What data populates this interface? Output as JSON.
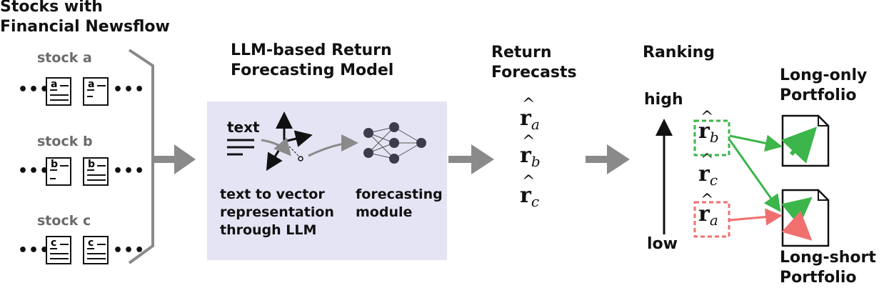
{
  "header": {
    "source_title": "Stocks with\nFinancial Newsflow",
    "model_title": "LLM-based Return\nForecasting Model",
    "forecasts_title": "Return\nForecasts",
    "ranking_title": "Ranking"
  },
  "stocks": [
    {
      "label": "stock a",
      "doc_letter": "a"
    },
    {
      "label": "stock b",
      "doc_letter": "b"
    },
    {
      "label": "stock c",
      "doc_letter": "c"
    }
  ],
  "ellipsis": "•••",
  "model": {
    "text_word": "text",
    "t2v_label": "text to vector\nrepresentation\nthrough LLM",
    "forecast_label": "forecasting\nmodule"
  },
  "forecasts": {
    "symbol": "r",
    "subscripts": [
      "a",
      "b",
      "c"
    ]
  },
  "ranking": {
    "high": "high",
    "low": "low",
    "order": [
      "b",
      "c",
      "a"
    ]
  },
  "portfolios": {
    "long_only": "Long-only\nPortfolio",
    "long_short": "Long-short\nPortfolio"
  },
  "colors": {
    "arrow_gray": "#8a8a8a",
    "panel_bg": "#e4e4f4",
    "green": "#3cb54a",
    "red": "#f07070",
    "stock_label": "#6b6b6b"
  }
}
